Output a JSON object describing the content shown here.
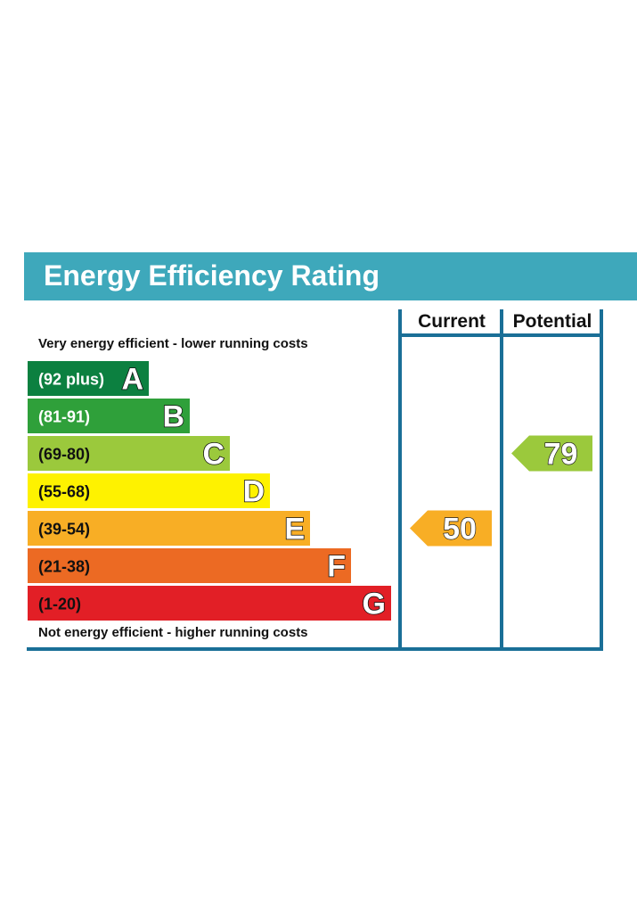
{
  "title": "Energy Efficiency Rating",
  "columns": {
    "current": "Current",
    "potential": "Potential"
  },
  "captions": {
    "top": "Very energy efficient - lower running costs",
    "bottom": "Not energy efficient - higher running costs"
  },
  "chart_data": {
    "type": "bar",
    "categories": [
      "A",
      "B",
      "C",
      "D",
      "E",
      "F",
      "G"
    ],
    "bands": [
      {
        "letter": "A",
        "range": "(92 plus)",
        "min": 92,
        "max": null,
        "color": "#0c8040",
        "text_color": "#ffffff"
      },
      {
        "letter": "B",
        "range": "(81-91)",
        "min": 81,
        "max": 91,
        "color": "#2fa03a",
        "text_color": "#ffffff"
      },
      {
        "letter": "C",
        "range": "(69-80)",
        "min": 69,
        "max": 80,
        "color": "#9bc93c",
        "text_color": "#111111"
      },
      {
        "letter": "D",
        "range": "(55-68)",
        "min": 55,
        "max": 68,
        "color": "#fef200",
        "text_color": "#111111"
      },
      {
        "letter": "E",
        "range": "(39-54)",
        "min": 39,
        "max": 54,
        "color": "#f8ae25",
        "text_color": "#111111"
      },
      {
        "letter": "F",
        "range": "(21-38)",
        "min": 21,
        "max": 38,
        "color": "#ec6a23",
        "text_color": "#111111"
      },
      {
        "letter": "G",
        "range": "(1-20)",
        "min": 1,
        "max": 20,
        "color": "#e21f26",
        "text_color": "#111111"
      }
    ],
    "ratings": [
      {
        "column": "Current",
        "value": 50,
        "band": "E",
        "color": "#f8ae25"
      },
      {
        "column": "Potential",
        "value": 79,
        "band": "C",
        "color": "#9bc93c"
      }
    ]
  }
}
